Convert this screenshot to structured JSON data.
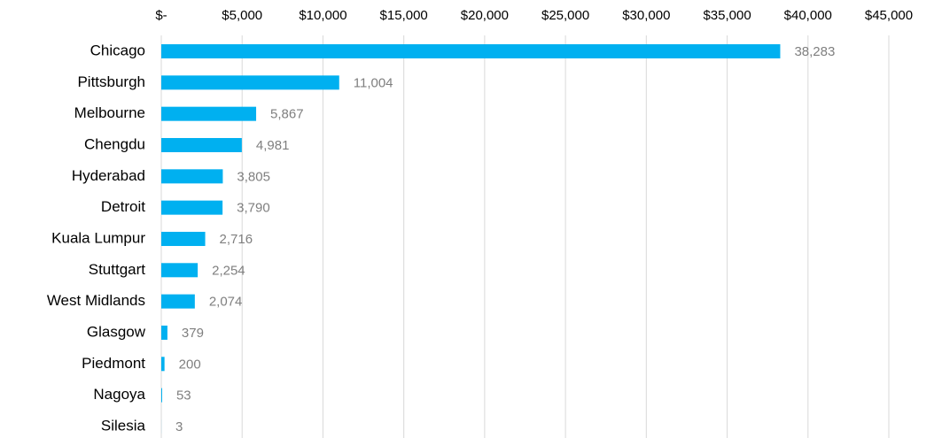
{
  "chart_data": {
    "type": "bar",
    "orientation": "horizontal",
    "categories": [
      "Chicago",
      "Pittsburgh",
      "Melbourne",
      "Chengdu",
      "Hyderabad",
      "Detroit",
      "Kuala Lumpur",
      "Stuttgart",
      "West Midlands",
      "Glasgow",
      "Piedmont",
      "Nagoya",
      "Silesia"
    ],
    "values": [
      38283,
      11004,
      5867,
      4981,
      3805,
      3790,
      2716,
      2254,
      2074,
      379,
      200,
      53,
      3
    ],
    "value_labels": [
      "38,283",
      "11,004",
      "5,867",
      "4,981",
      "3,805",
      "3,790",
      "2,716",
      "2,254",
      "2,074",
      "379",
      "200",
      "53",
      "3"
    ],
    "color": "#00b0f0",
    "xlim": [
      0,
      45000
    ],
    "xticks": [
      {
        "value": 0,
        "label": "$-"
      },
      {
        "value": 5000,
        "label": "$5,000"
      },
      {
        "value": 10000,
        "label": "$10,000"
      },
      {
        "value": 15000,
        "label": "$15,000"
      },
      {
        "value": 20000,
        "label": "$20,000"
      },
      {
        "value": 25000,
        "label": "$25,000"
      },
      {
        "value": 30000,
        "label": "$30,000"
      },
      {
        "value": 35000,
        "label": "$35,000"
      },
      {
        "value": 40000,
        "label": "$40,000"
      },
      {
        "value": 45000,
        "label": "$45,000"
      }
    ],
    "grid": true,
    "axis_position": "top"
  }
}
